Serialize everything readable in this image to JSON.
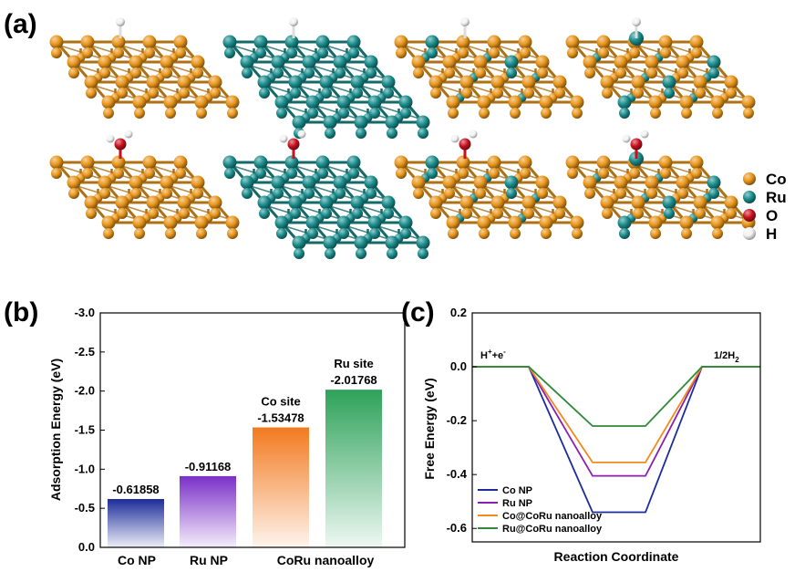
{
  "panel_labels": {
    "a": "(a)",
    "b": "(b)",
    "c": "(c)"
  },
  "colors": {
    "Co": "#E8951A",
    "Ru": "#1A8C8C",
    "O": "#C8101E",
    "H": "#F2F2F2"
  },
  "atom_legend": [
    {
      "label": "Co",
      "color": "#E8951A"
    },
    {
      "label": "Ru",
      "color": "#1A8C8C"
    },
    {
      "label": "O",
      "color": "#C8101E"
    },
    {
      "label": "H",
      "color": "#F2F2F2"
    }
  ],
  "structures": {
    "rows": [
      {
        "adsorbate": "H",
        "slabs": [
          "Co",
          "Ru",
          "Co@CoRu",
          "Ru@CoRu"
        ]
      },
      {
        "adsorbate": "OH2",
        "slabs": [
          "Co",
          "Ru",
          "Co@CoRu",
          "Ru@CoRu"
        ]
      }
    ]
  },
  "chart_data": [
    {
      "type": "bar",
      "panel": "(b)",
      "ylabel": "Adsorption Energy (eV)",
      "ylim": [
        0.0,
        -3.0
      ],
      "y_axis_inverted": true,
      "yticks": [
        "0.0",
        "-0.5",
        "-1.0",
        "-1.5",
        "-2.0",
        "-2.5",
        "-3.0"
      ],
      "ytick_values": [
        0.0,
        -0.5,
        -1.0,
        -1.5,
        -2.0,
        -2.5,
        -3.0
      ],
      "group_labels": [
        "Co NP",
        "Ru NP",
        "CoRu nanoalloy"
      ],
      "bars": [
        {
          "value": -0.61858,
          "label": "-0.61858",
          "site": "",
          "color": "#1C2C9A"
        },
        {
          "value": -0.91168,
          "label": "-0.91168",
          "site": "",
          "color": "#7A2FC8"
        },
        {
          "value": -1.53478,
          "label": "-1.53478",
          "site": "Co site",
          "color": "#F27A1F"
        },
        {
          "value": -2.01768,
          "label": "-2.01768",
          "site": "Ru site",
          "color": "#2EA25A"
        }
      ]
    },
    {
      "type": "line",
      "panel": "(c)",
      "xlabel": "Reaction Coordinate",
      "ylabel": "Free Energy (eV)",
      "ylim": [
        -0.65,
        0.2
      ],
      "yticks": [
        "0.2",
        "0.0",
        "-0.2",
        "-0.4",
        "-0.6"
      ],
      "ytick_values": [
        0.2,
        0.0,
        -0.2,
        -0.4,
        -0.6
      ],
      "state_labels": {
        "start_prefix": "H",
        "start_sup1": "+",
        "start_mid": "+e",
        "start_sup2": "-",
        "end": "1/2H",
        "end_sub": "2"
      },
      "series": [
        {
          "name": "Co NP",
          "color": "#1C2C9A",
          "values": [
            0.0,
            -0.54,
            0.0
          ]
        },
        {
          "name": "Ru NP",
          "color": "#8A1FB0",
          "values": [
            0.0,
            -0.405,
            0.0
          ]
        },
        {
          "name": "Co@CoRu nanoalloy",
          "color": "#F28A1F",
          "values": [
            0.0,
            -0.355,
            0.0
          ]
        },
        {
          "name": "Ru@CoRu nanoalloy",
          "color": "#2E8A3A",
          "values": [
            0.0,
            -0.22,
            0.0
          ]
        }
      ]
    }
  ]
}
